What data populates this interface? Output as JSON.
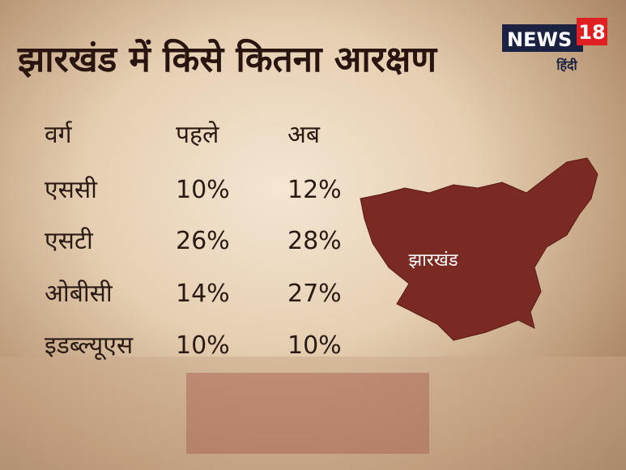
{
  "header": {
    "title": "झारखंड में किसे कितना आरक्षण"
  },
  "logo": {
    "brand": "NEWS",
    "number": "18",
    "language": "हिंदी"
  },
  "table": {
    "columns": [
      "वर्ग",
      "पहले",
      "अब"
    ],
    "rows": [
      [
        "एससी",
        "10%",
        "12%"
      ],
      [
        "एसटी",
        "26%",
        "28%"
      ],
      [
        "ओबीसी",
        "14%",
        "27%"
      ],
      [
        "इडब्ल्यूएस",
        "10%",
        "10%"
      ]
    ]
  },
  "map": {
    "label": "झारखंड"
  }
}
